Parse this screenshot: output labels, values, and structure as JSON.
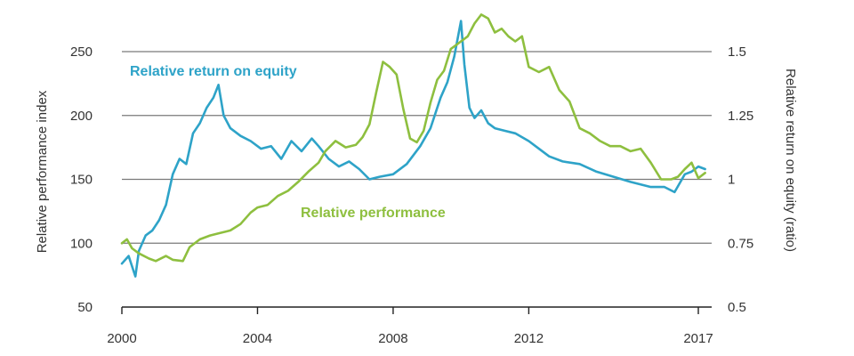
{
  "chart_data": {
    "type": "line",
    "left_axis": {
      "label": "Relative performance index",
      "ylim": [
        50,
        250
      ],
      "ticks": [
        50,
        100,
        150,
        200,
        250
      ]
    },
    "right_axis": {
      "label": "Relative return on equity (ratio)",
      "ylim": [
        0.5,
        1.5
      ],
      "ticks": [
        "0.5",
        "0.75",
        "1",
        "1.25",
        "1.5"
      ]
    },
    "x_axis": {
      "xlim": [
        2000,
        2017
      ],
      "ticks": [
        "2000",
        "2004",
        "2008",
        "2012",
        "2017"
      ]
    },
    "grid": "horizontal",
    "series": [
      {
        "name": "Relative return on equity",
        "axis": "right",
        "color": "#2ea3c8",
        "x": [
          2000.0,
          2000.2,
          2000.4,
          2000.5,
          2000.7,
          2000.9,
          2001.1,
          2001.3,
          2001.5,
          2001.7,
          2001.9,
          2002.1,
          2002.3,
          2002.5,
          2002.7,
          2002.85,
          2003.0,
          2003.2,
          2003.5,
          2003.8,
          2004.1,
          2004.4,
          2004.7,
          2005.0,
          2005.3,
          2005.6,
          2005.8,
          2006.1,
          2006.4,
          2006.7,
          2007.0,
          2007.3,
          2007.6,
          2008.0,
          2008.4,
          2008.8,
          2009.1,
          2009.4,
          2009.6,
          2009.8,
          2010.0,
          2010.1,
          2010.25,
          2010.4,
          2010.6,
          2010.8,
          2011.0,
          2011.3,
          2011.6,
          2012.0,
          2012.3,
          2012.6,
          2013.0,
          2013.5,
          2014.0,
          2014.5,
          2015.0,
          2015.3,
          2015.6,
          2016.0,
          2016.3,
          2016.6,
          2016.8,
          2017.0,
          2017.2
        ],
        "y": [
          0.67,
          0.7,
          0.62,
          0.72,
          0.78,
          0.8,
          0.84,
          0.9,
          1.02,
          1.08,
          1.06,
          1.18,
          1.22,
          1.28,
          1.32,
          1.37,
          1.25,
          1.2,
          1.17,
          1.15,
          1.12,
          1.13,
          1.08,
          1.15,
          1.11,
          1.16,
          1.13,
          1.08,
          1.05,
          1.07,
          1.04,
          1.0,
          1.01,
          1.02,
          1.06,
          1.13,
          1.2,
          1.32,
          1.38,
          1.48,
          1.62,
          1.45,
          1.28,
          1.24,
          1.27,
          1.22,
          1.2,
          1.19,
          1.18,
          1.15,
          1.12,
          1.09,
          1.07,
          1.06,
          1.03,
          1.01,
          0.99,
          0.98,
          0.97,
          0.97,
          0.95,
          1.02,
          1.03,
          1.05,
          1.04
        ]
      },
      {
        "name": "Relative performance",
        "axis": "left",
        "color": "#8ebf3f",
        "x": [
          2000.0,
          2000.15,
          2000.3,
          2000.5,
          2000.8,
          2001.0,
          2001.3,
          2001.5,
          2001.8,
          2002.0,
          2002.3,
          2002.6,
          2002.9,
          2003.2,
          2003.5,
          2003.8,
          2004.0,
          2004.3,
          2004.6,
          2004.9,
          2005.2,
          2005.5,
          2005.8,
          2006.0,
          2006.3,
          2006.6,
          2006.9,
          2007.1,
          2007.3,
          2007.5,
          2007.7,
          2007.9,
          2008.1,
          2008.3,
          2008.5,
          2008.7,
          2008.9,
          2009.1,
          2009.3,
          2009.5,
          2009.7,
          2010.0,
          2010.2,
          2010.4,
          2010.6,
          2010.8,
          2011.0,
          2011.2,
          2011.4,
          2011.6,
          2011.8,
          2012.0,
          2012.3,
          2012.6,
          2012.9,
          2013.2,
          2013.5,
          2013.8,
          2014.1,
          2014.4,
          2014.7,
          2015.0,
          2015.3,
          2015.6,
          2015.9,
          2016.2,
          2016.4,
          2016.6,
          2016.8,
          2017.0,
          2017.2
        ],
        "y": [
          100,
          103,
          96,
          92,
          88,
          86,
          90,
          87,
          86,
          97,
          103,
          106,
          108,
          110,
          115,
          124,
          128,
          130,
          137,
          141,
          148,
          156,
          163,
          172,
          180,
          175,
          177,
          183,
          193,
          218,
          242,
          238,
          232,
          205,
          182,
          179,
          188,
          210,
          228,
          235,
          252,
          258,
          262,
          272,
          279,
          276,
          265,
          268,
          262,
          258,
          262,
          238,
          234,
          238,
          220,
          211,
          190,
          186,
          180,
          176,
          176,
          172,
          174,
          163,
          150,
          150,
          152,
          158,
          163,
          151,
          155
        ]
      }
    ]
  }
}
